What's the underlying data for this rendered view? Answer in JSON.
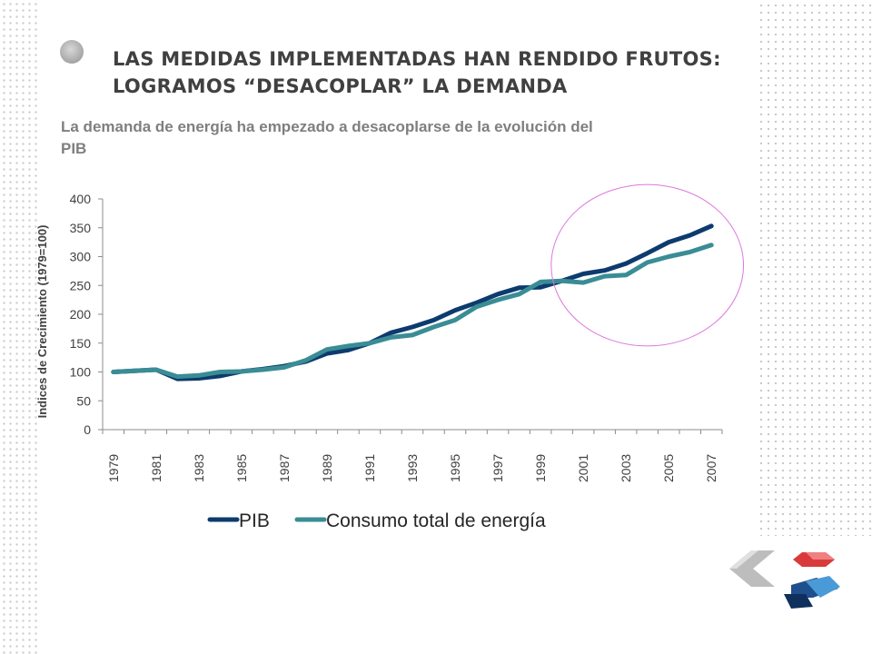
{
  "slide": {
    "title": "LAS MEDIDAS IMPLEMENTADAS HAN RENDIDO FRUTOS: LOGRAMOS “DESACOPLAR” LA DEMANDA",
    "subtitle": "La demanda de energía ha empezado a desacoplarse de la evolución del PIB",
    "bullet_icon": "circle-bullet-icon",
    "logo_icon": "chevron-cubes-logo-icon",
    "colors": {
      "title": "#404040",
      "subtitle": "#7f7f7f",
      "pib": "#0d3b6e",
      "energia": "#3a8c95",
      "highlight_ellipse": "#dd77dd"
    }
  },
  "chart_data": {
    "type": "line",
    "title": "",
    "xlabel": "",
    "ylabel": "Indices de Crecimiento (1979=100)",
    "ylim": [
      0,
      400
    ],
    "yticks": [
      0,
      50,
      100,
      150,
      200,
      250,
      300,
      350,
      400
    ],
    "x": [
      1979,
      1980,
      1981,
      1982,
      1983,
      1984,
      1985,
      1986,
      1987,
      1988,
      1989,
      1990,
      1991,
      1992,
      1993,
      1994,
      1995,
      1996,
      1997,
      1998,
      1999,
      2000,
      2001,
      2002,
      2003,
      2004,
      2005,
      2006,
      2007
    ],
    "xtick_labels": [
      "1979",
      "1981",
      "1983",
      "1985",
      "1987",
      "1989",
      "1991",
      "1993",
      "1995",
      "1997",
      "1999",
      "2001",
      "2003",
      "2005",
      "2007"
    ],
    "grid": false,
    "legend_position": "bottom",
    "series": [
      {
        "name": "PIB",
        "color": "#0d3b6e",
        "values": [
          100,
          102,
          104,
          88,
          89,
          93,
          101,
          105,
          110,
          118,
          132,
          138,
          150,
          168,
          178,
          190,
          207,
          220,
          235,
          246,
          247,
          258,
          270,
          276,
          288,
          306,
          325,
          337,
          353
        ]
      },
      {
        "name": "Consumo total de energía",
        "color": "#3a8c95",
        "values": [
          100,
          102,
          104,
          92,
          94,
          100,
          101,
          104,
          108,
          120,
          139,
          145,
          150,
          160,
          164,
          178,
          190,
          213,
          225,
          235,
          256,
          258,
          255,
          266,
          268,
          290,
          300,
          308,
          320
        ]
      }
    ],
    "annotations": [
      {
        "type": "ellipse",
        "label": "",
        "x_range": [
          1999.5,
          2008.5
        ],
        "y_range": [
          145,
          425
        ]
      }
    ]
  }
}
